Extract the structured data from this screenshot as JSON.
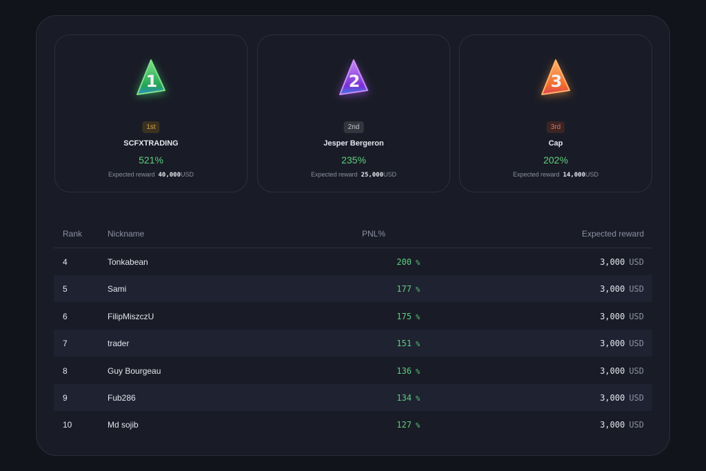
{
  "podium": [
    {
      "badge": "1",
      "place": "1st",
      "nickname": "SCFXTRADING",
      "pnl": "521%",
      "reward_label": "Expected reward",
      "reward": "40,000",
      "currency": "USD",
      "theme": "green"
    },
    {
      "badge": "2",
      "place": "2nd",
      "nickname": "Jesper Bergeron",
      "pnl": "235%",
      "reward_label": "Expected reward",
      "reward": "25,000",
      "currency": "USD",
      "theme": "purple"
    },
    {
      "badge": "3",
      "place": "3rd",
      "nickname": "Cap",
      "pnl": "202%",
      "reward_label": "Expected reward",
      "reward": "14,000",
      "currency": "USD",
      "theme": "orange"
    }
  ],
  "table": {
    "headers": [
      "Rank",
      "Nickname",
      "PNL%",
      "Expected reward"
    ],
    "rows": [
      {
        "rank": "4",
        "nickname": "Tonkabean",
        "pnl": "200",
        "pnl_unit": "%",
        "reward": "3,000",
        "currency": "USD"
      },
      {
        "rank": "5",
        "nickname": "Sami",
        "pnl": "177",
        "pnl_unit": "%",
        "reward": "3,000",
        "currency": "USD"
      },
      {
        "rank": "6",
        "nickname": "FilipMiszczU",
        "pnl": "175",
        "pnl_unit": "%",
        "reward": "3,000",
        "currency": "USD"
      },
      {
        "rank": "7",
        "nickname": "trader",
        "pnl": "151",
        "pnl_unit": "%",
        "reward": "3,000",
        "currency": "USD"
      },
      {
        "rank": "8",
        "nickname": "Guy Bourgeau",
        "pnl": "136",
        "pnl_unit": "%",
        "reward": "3,000",
        "currency": "USD"
      },
      {
        "rank": "9",
        "nickname": "Fub286",
        "pnl": "134",
        "pnl_unit": "%",
        "reward": "3,000",
        "currency": "USD"
      },
      {
        "rank": "10",
        "nickname": "Md sojib",
        "pnl": "127",
        "pnl_unit": "%",
        "reward": "3,000",
        "currency": "USD"
      }
    ]
  }
}
